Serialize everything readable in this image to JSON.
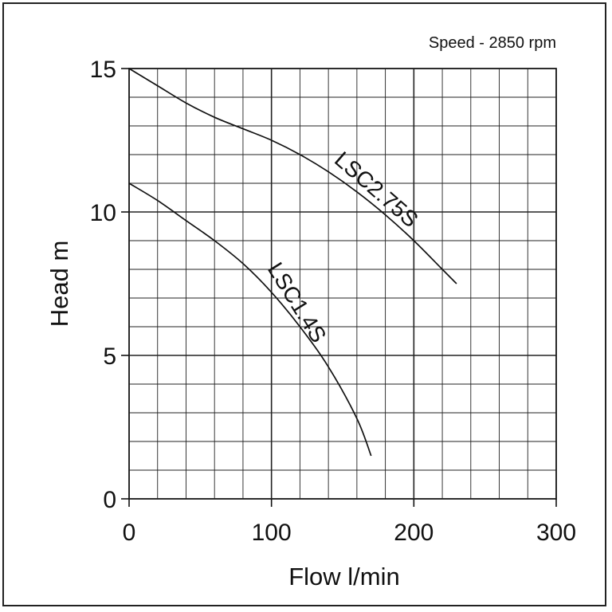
{
  "chart_data": {
    "type": "line",
    "title": "",
    "annotation": "Speed - 2850 rpm",
    "xlabel": "Flow l/min",
    "ylabel": "Head m",
    "xlim": [
      0,
      300
    ],
    "ylim": [
      0,
      15
    ],
    "x_ticks": [
      "0",
      "100",
      "200",
      "300"
    ],
    "y_ticks": [
      "0",
      "5",
      "10",
      "15"
    ],
    "grid": true,
    "legend": "none",
    "series": [
      {
        "name": "LSC2.75S",
        "x": [
          0,
          20,
          40,
          60,
          80,
          100,
          120,
          140,
          160,
          180,
          200,
          220,
          230
        ],
        "y": [
          15,
          14.4,
          13.8,
          13.3,
          12.9,
          12.5,
          12.0,
          11.4,
          10.7,
          9.9,
          9.0,
          8.0,
          7.5
        ]
      },
      {
        "name": "LSC1.4S",
        "x": [
          0,
          20,
          40,
          60,
          80,
          100,
          120,
          140,
          160,
          170
        ],
        "y": [
          11,
          10.4,
          9.7,
          9.0,
          8.2,
          7.2,
          6.0,
          4.6,
          2.8,
          1.5
        ]
      }
    ],
    "colors": {
      "line": "#111111",
      "grid": "#222222",
      "background": "#ffffff"
    }
  }
}
